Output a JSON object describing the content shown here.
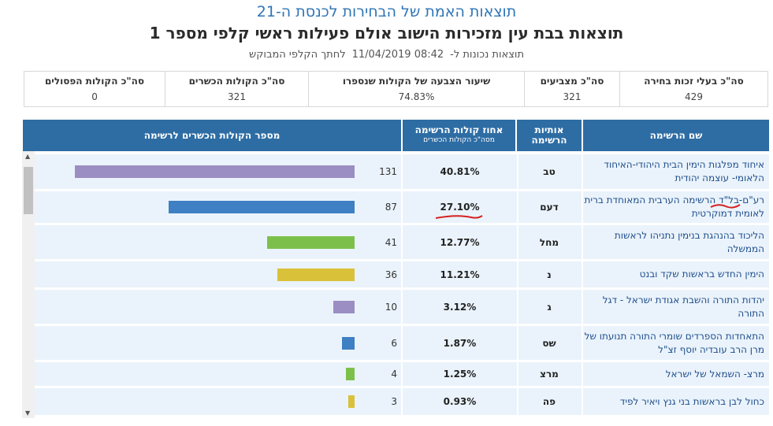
{
  "header": {
    "title": "תוצאות האמת של הבחירות לכנסת ה-21",
    "subtitle": "תוצאות בבת עין מזכירות הישוב אולם פעילות ראשי קלפי מספר 1",
    "updated_prefix": "תוצאות נכונות ל-",
    "updated_time": "08:42 11/04/2019",
    "updated_suffix": "לחתך הקלפי המבוקש"
  },
  "summary": [
    {
      "label": "סה\"כ בעלי זכות בחירה",
      "value": "429"
    },
    {
      "label": "סה\"כ מצביעים",
      "value": "321"
    },
    {
      "label": "שיעור הצבעה של הקולות שנספרו",
      "value": "74.83%"
    },
    {
      "label": "סה\"כ הקולות הכשרים",
      "value": "321"
    },
    {
      "label": "סה\"כ הקולות הפסולים",
      "value": "0"
    }
  ],
  "table": {
    "col_name": "שם הרשימה",
    "col_letters_1": "אותיות",
    "col_letters_2": "הרשימה",
    "col_pct": "אחוז קולות הרשימה",
    "col_pct_sub": "מסה\"כ הקולות הכשרים",
    "col_chart": "מספר הקולות הכשרים לרשימה"
  },
  "rows": [
    {
      "name": "איחוד מפלגות הימין הבית היהודי-האיחוד הלאומי- עוצמה יהודית",
      "letters": "טב",
      "pct": "40.81%",
      "count": "131",
      "votes": 131,
      "color": "#9b8ec2"
    },
    {
      "name": "רע\"ם-בל\"ד הרשימה הערבית המאוחדת ברית לאומית דמוקרטית",
      "letters": "דעם",
      "pct": "27.10%",
      "count": "87",
      "votes": 87,
      "color": "#3f7fc4"
    },
    {
      "name": "הליכוד בהנהגת בנימין נתניהו לראשות הממשלה",
      "letters": "מחל",
      "pct": "12.77%",
      "count": "41",
      "votes": 41,
      "color": "#7cc04b"
    },
    {
      "name": "הימין החדש בראשות שקד ובנט",
      "letters": "נ",
      "pct": "11.21%",
      "count": "36",
      "votes": 36,
      "color": "#d9c13a"
    },
    {
      "name": "יהדות התורה והשבת אגודת ישראל - דגל התורה",
      "letters": "ג",
      "pct": "3.12%",
      "count": "10",
      "votes": 10,
      "color": "#9b8ec2"
    },
    {
      "name": "התאחדות הספרדים שומרי התורה תנועתו של מרן הרב עובדיה יוסף זצ\"ל",
      "letters": "שס",
      "pct": "1.87%",
      "count": "6",
      "votes": 6,
      "color": "#3f7fc4"
    },
    {
      "name": "מרצ- השמאל של ישראל",
      "letters": "מרצ",
      "pct": "1.25%",
      "count": "4",
      "votes": 4,
      "color": "#7cc04b"
    },
    {
      "name": "כחול לבן בראשות בני גנץ ויאיר לפיד",
      "letters": "פה",
      "pct": "0.93%",
      "count": "3",
      "votes": 3,
      "color": "#d9c13a"
    }
  ],
  "annotation_color": "#d62020"
}
